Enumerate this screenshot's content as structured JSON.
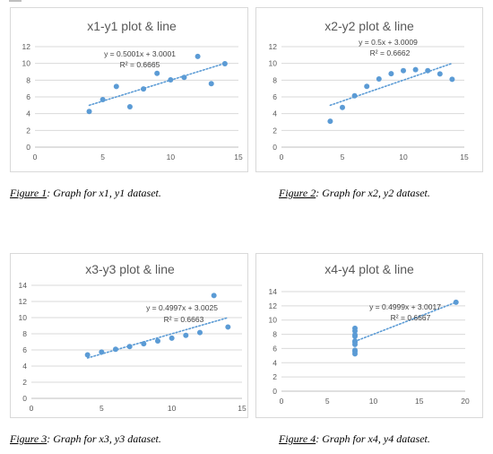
{
  "colors": {
    "point": "#5b9bd5",
    "trendline": "#5b9bd5",
    "grid": "#d9d9d9",
    "text": "#595959"
  },
  "figures": [
    {
      "title": "x1-y1 plot & line",
      "equation": "y = 0.5001x + 3.0001",
      "r2": "R² = 0.6665",
      "caption_label": "Figure 1",
      "caption_text": ":  Graph for x1, y1 dataset.",
      "chart_data": {
        "type": "scatter",
        "title": "x1-y1 plot & line",
        "xlim": [
          0,
          15
        ],
        "ylim": [
          0,
          12
        ],
        "xticks": [
          0,
          5,
          10,
          15
        ],
        "yticks": [
          0,
          2,
          4,
          6,
          8,
          10,
          12
        ],
        "grid": true,
        "points": [
          [
            10,
            8.04
          ],
          [
            8,
            6.95
          ],
          [
            13,
            7.58
          ],
          [
            9,
            8.81
          ],
          [
            11,
            8.33
          ],
          [
            14,
            9.96
          ],
          [
            6,
            7.24
          ],
          [
            4,
            4.26
          ],
          [
            12,
            10.84
          ],
          [
            7,
            4.82
          ],
          [
            5,
            5.68
          ]
        ],
        "trendline": {
          "slope": 0.5001,
          "intercept": 3.0001,
          "x_range": [
            4,
            14
          ]
        }
      }
    },
    {
      "title": "x2-y2 plot & line",
      "equation": "y = 0.5x + 3.0009",
      "r2": "R² = 0.6662",
      "caption_label": "Figure 2",
      "caption_text": ":  Graph for x2, y2 dataset.",
      "chart_data": {
        "type": "scatter",
        "title": "x2-y2 plot & line",
        "xlim": [
          0,
          15
        ],
        "ylim": [
          0,
          12
        ],
        "xticks": [
          0,
          5,
          10,
          15
        ],
        "yticks": [
          0,
          2,
          4,
          6,
          8,
          10,
          12
        ],
        "grid": true,
        "points": [
          [
            10,
            9.14
          ],
          [
            8,
            8.14
          ],
          [
            13,
            8.74
          ],
          [
            9,
            8.77
          ],
          [
            11,
            9.26
          ],
          [
            14,
            8.1
          ],
          [
            6,
            6.13
          ],
          [
            4,
            3.1
          ],
          [
            12,
            9.13
          ],
          [
            7,
            7.26
          ],
          [
            5,
            4.74
          ]
        ],
        "trendline": {
          "slope": 0.5,
          "intercept": 3.0009,
          "x_range": [
            4,
            14
          ]
        }
      }
    },
    {
      "title": "x3-y3 plot & line",
      "equation": "y = 0.4997x + 3.0025",
      "r2": "R² = 0.6663",
      "caption_label": "Figure 3",
      "caption_text": ":  Graph for x3, y3 dataset.",
      "chart_data": {
        "type": "scatter",
        "title": "x3-y3 plot & line",
        "xlim": [
          0,
          15
        ],
        "ylim": [
          0,
          14
        ],
        "xticks": [
          0,
          5,
          10,
          15
        ],
        "yticks": [
          0,
          2,
          4,
          6,
          8,
          10,
          12,
          14
        ],
        "grid": true,
        "points": [
          [
            10,
            7.46
          ],
          [
            8,
            6.77
          ],
          [
            13,
            12.74
          ],
          [
            9,
            7.11
          ],
          [
            11,
            7.81
          ],
          [
            14,
            8.84
          ],
          [
            6,
            6.08
          ],
          [
            4,
            5.39
          ],
          [
            12,
            8.15
          ],
          [
            7,
            6.42
          ],
          [
            5,
            5.73
          ]
        ],
        "trendline": {
          "slope": 0.4997,
          "intercept": 3.0025,
          "x_range": [
            4,
            14
          ]
        }
      }
    },
    {
      "title": "x4-y4 plot & line",
      "equation": "y = 0.4999x + 3.0017",
      "r2": "R² = 0.6667",
      "caption_label": "Figure 4",
      "caption_text": ":  Graph for x4, y4 dataset.",
      "chart_data": {
        "type": "scatter",
        "title": "x4-y4 plot & line",
        "xlim": [
          0,
          20
        ],
        "ylim": [
          0,
          14
        ],
        "xticks": [
          0,
          5,
          10,
          15,
          20
        ],
        "yticks": [
          0,
          2,
          4,
          6,
          8,
          10,
          12,
          14
        ],
        "grid": true,
        "points": [
          [
            8,
            6.58
          ],
          [
            8,
            5.76
          ],
          [
            8,
            7.71
          ],
          [
            8,
            8.84
          ],
          [
            8,
            8.47
          ],
          [
            8,
            7.04
          ],
          [
            8,
            5.25
          ],
          [
            19,
            12.5
          ],
          [
            8,
            5.56
          ],
          [
            8,
            7.91
          ],
          [
            8,
            6.89
          ]
        ],
        "trendline": {
          "slope": 0.4999,
          "intercept": 3.0017,
          "x_range": [
            8,
            19
          ]
        }
      }
    }
  ]
}
